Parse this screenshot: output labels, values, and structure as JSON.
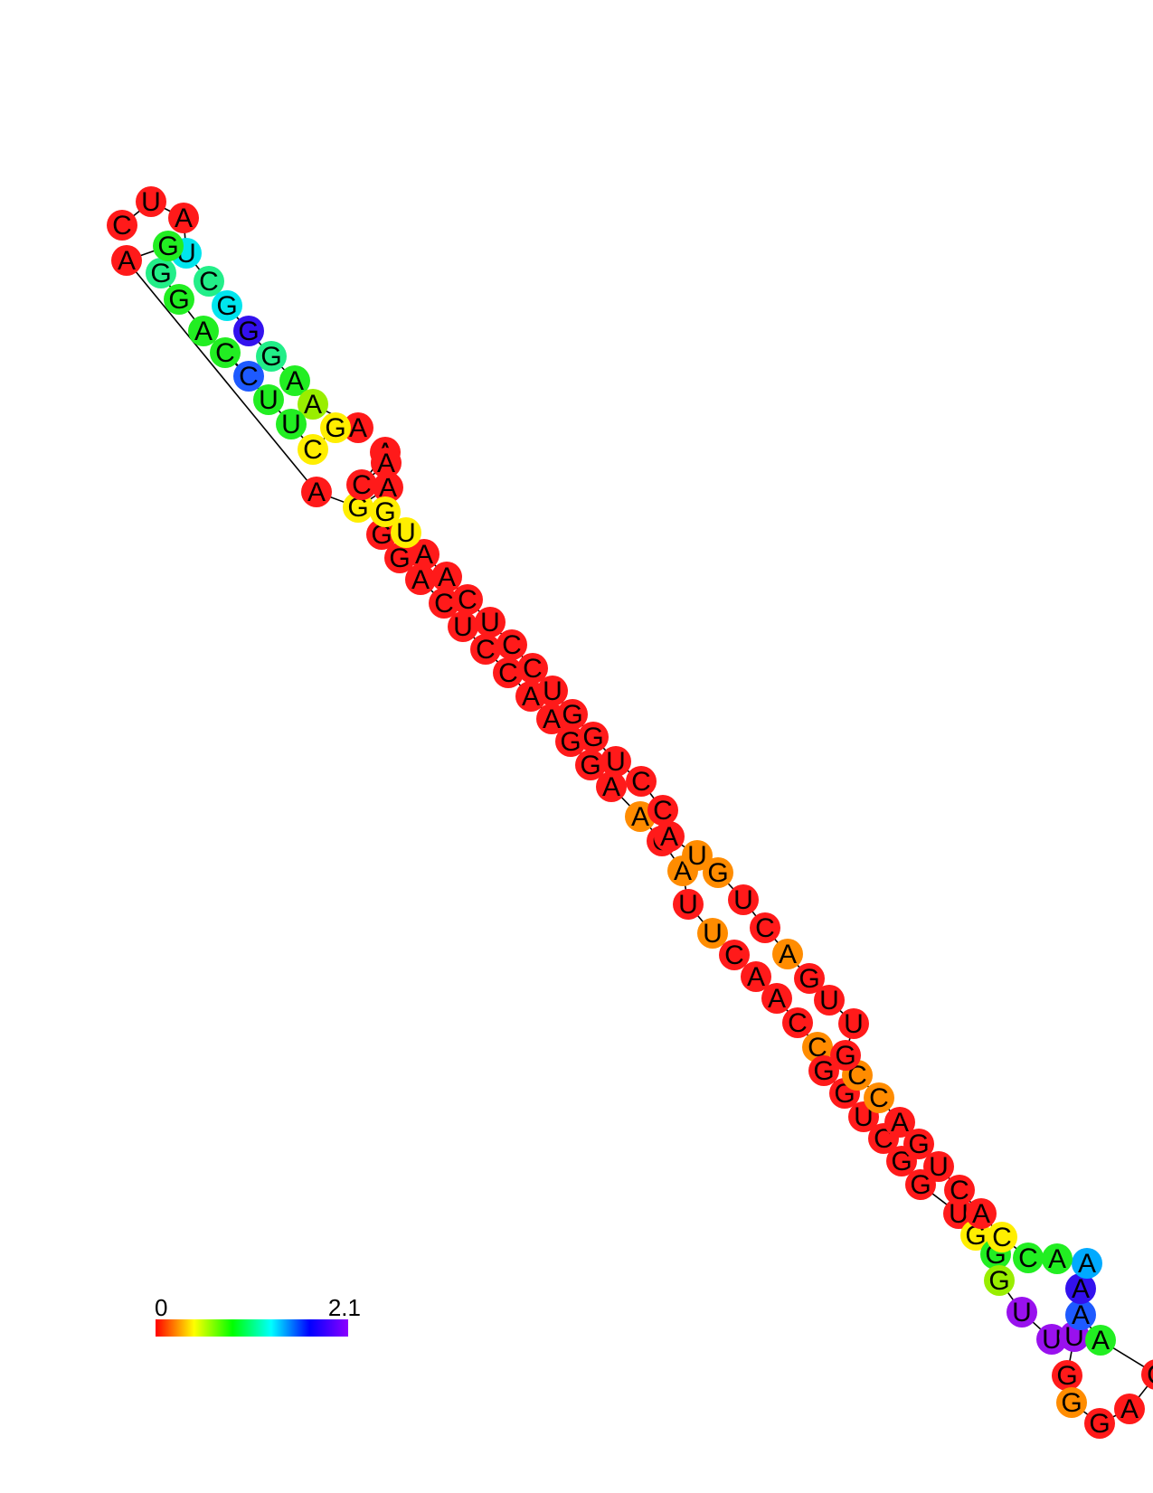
{
  "diagram": {
    "type": "rna-secondary-structure",
    "colorscale": {
      "min_label": "0",
      "max_label": "2.1",
      "stops": [
        "#ff0000",
        "#ffff00",
        "#00ff00",
        "#00ffff",
        "#0000ff",
        "#8b00ff"
      ]
    },
    "palette": {
      "red": "#ff1a1a",
      "orange": "#ff8c00",
      "yellow": "#ffee00",
      "lime": "#99ee00",
      "green": "#22ee22",
      "mint": "#22ee88",
      "cyan": "#00e5ee",
      "azure": "#00aaff",
      "blue": "#1e5aff",
      "indigo": "#3311ee",
      "purple": "#9911ee"
    },
    "nucleotides": [
      {
        "base": "C",
        "color": "red"
      },
      {
        "base": "U",
        "color": "red"
      },
      {
        "base": "A",
        "color": "red"
      },
      {
        "base": "U",
        "color": "cyan"
      },
      {
        "base": "C",
        "color": "mint"
      },
      {
        "base": "G",
        "color": "cyan"
      },
      {
        "base": "G",
        "color": "indigo"
      },
      {
        "base": "G",
        "color": "mint"
      },
      {
        "base": "A",
        "color": "green"
      },
      {
        "base": "A",
        "color": "lime"
      },
      {
        "base": "A",
        "color": "red"
      },
      {
        "base": "G",
        "color": "yellow"
      },
      {
        "base": "C",
        "color": "yellow"
      },
      {
        "base": "U",
        "color": "green"
      },
      {
        "base": "U",
        "color": "green"
      },
      {
        "base": "C",
        "color": "green"
      },
      {
        "base": "C",
        "color": "blue"
      },
      {
        "base": "A",
        "color": "green"
      },
      {
        "base": "G",
        "color": "green"
      },
      {
        "base": "G",
        "color": "mint"
      },
      {
        "base": "G",
        "color": "green"
      },
      {
        "base": "A",
        "color": "red"
      },
      {
        "base": "A",
        "color": "red"
      },
      {
        "base": "G",
        "color": "yellow"
      },
      {
        "base": "A",
        "color": "red"
      },
      {
        "base": "G",
        "color": "red"
      },
      {
        "base": "G",
        "color": "red"
      },
      {
        "base": "A",
        "color": "red"
      },
      {
        "base": "C",
        "color": "red"
      },
      {
        "base": "U",
        "color": "red"
      },
      {
        "base": "C",
        "color": "red"
      },
      {
        "base": "C",
        "color": "red"
      },
      {
        "base": "A",
        "color": "red"
      },
      {
        "base": "A",
        "color": "red"
      },
      {
        "base": "G",
        "color": "red"
      },
      {
        "base": "G",
        "color": "red"
      },
      {
        "base": "A",
        "color": "red"
      },
      {
        "base": "A",
        "color": "orange"
      },
      {
        "base": "C",
        "color": "red"
      },
      {
        "base": "A",
        "color": "orange"
      },
      {
        "base": "U",
        "color": "red"
      },
      {
        "base": "U",
        "color": "orange"
      },
      {
        "base": "C",
        "color": "red"
      },
      {
        "base": "A",
        "color": "red"
      },
      {
        "base": "A",
        "color": "red"
      },
      {
        "base": "C",
        "color": "red"
      },
      {
        "base": "C",
        "color": "orange"
      },
      {
        "base": "G",
        "color": "red"
      },
      {
        "base": "G",
        "color": "red"
      },
      {
        "base": "U",
        "color": "red"
      },
      {
        "base": "C",
        "color": "red"
      },
      {
        "base": "G",
        "color": "red"
      },
      {
        "base": "G",
        "color": "red"
      },
      {
        "base": "U",
        "color": "red"
      },
      {
        "base": "G",
        "color": "yellow"
      },
      {
        "base": "G",
        "color": "green"
      },
      {
        "base": "G",
        "color": "lime"
      },
      {
        "base": "U",
        "color": "purple"
      },
      {
        "base": "U",
        "color": "purple"
      },
      {
        "base": "U",
        "color": "purple"
      },
      {
        "base": "G",
        "color": "red"
      },
      {
        "base": "G",
        "color": "orange"
      },
      {
        "base": "G",
        "color": "red"
      },
      {
        "base": "A",
        "color": "red"
      },
      {
        "base": "C",
        "color": "red"
      },
      {
        "base": "A",
        "color": "green"
      },
      {
        "base": "A",
        "color": "blue"
      },
      {
        "base": "A",
        "color": "indigo"
      },
      {
        "base": "A",
        "color": "azure"
      },
      {
        "base": "A",
        "color": "green"
      },
      {
        "base": "C",
        "color": "green"
      },
      {
        "base": "C",
        "color": "yellow"
      },
      {
        "base": "A",
        "color": "red"
      },
      {
        "base": "C",
        "color": "red"
      },
      {
        "base": "U",
        "color": "red"
      },
      {
        "base": "G",
        "color": "red"
      },
      {
        "base": "A",
        "color": "red"
      },
      {
        "base": "C",
        "color": "orange"
      },
      {
        "base": "C",
        "color": "orange"
      },
      {
        "base": "G",
        "color": "red"
      },
      {
        "base": "U",
        "color": "red"
      },
      {
        "base": "U",
        "color": "red"
      },
      {
        "base": "G",
        "color": "red"
      },
      {
        "base": "A",
        "color": "orange"
      },
      {
        "base": "C",
        "color": "red"
      },
      {
        "base": "U",
        "color": "red"
      },
      {
        "base": "G",
        "color": "orange"
      },
      {
        "base": "U",
        "color": "orange"
      },
      {
        "base": "A",
        "color": "red"
      },
      {
        "base": "C",
        "color": "red"
      },
      {
        "base": "C",
        "color": "red"
      },
      {
        "base": "U",
        "color": "red"
      },
      {
        "base": "G",
        "color": "red"
      },
      {
        "base": "G",
        "color": "red"
      },
      {
        "base": "U",
        "color": "red"
      },
      {
        "base": "C",
        "color": "red"
      },
      {
        "base": "C",
        "color": "red"
      },
      {
        "base": "U",
        "color": "red"
      },
      {
        "base": "C",
        "color": "red"
      },
      {
        "base": "A",
        "color": "red"
      },
      {
        "base": "A",
        "color": "red"
      },
      {
        "base": "U",
        "color": "yellow"
      },
      {
        "base": "G",
        "color": "yellow"
      },
      {
        "base": "A",
        "color": "red"
      },
      {
        "base": "C",
        "color": "red"
      },
      {
        "base": "A",
        "color": "red"
      }
    ]
  }
}
